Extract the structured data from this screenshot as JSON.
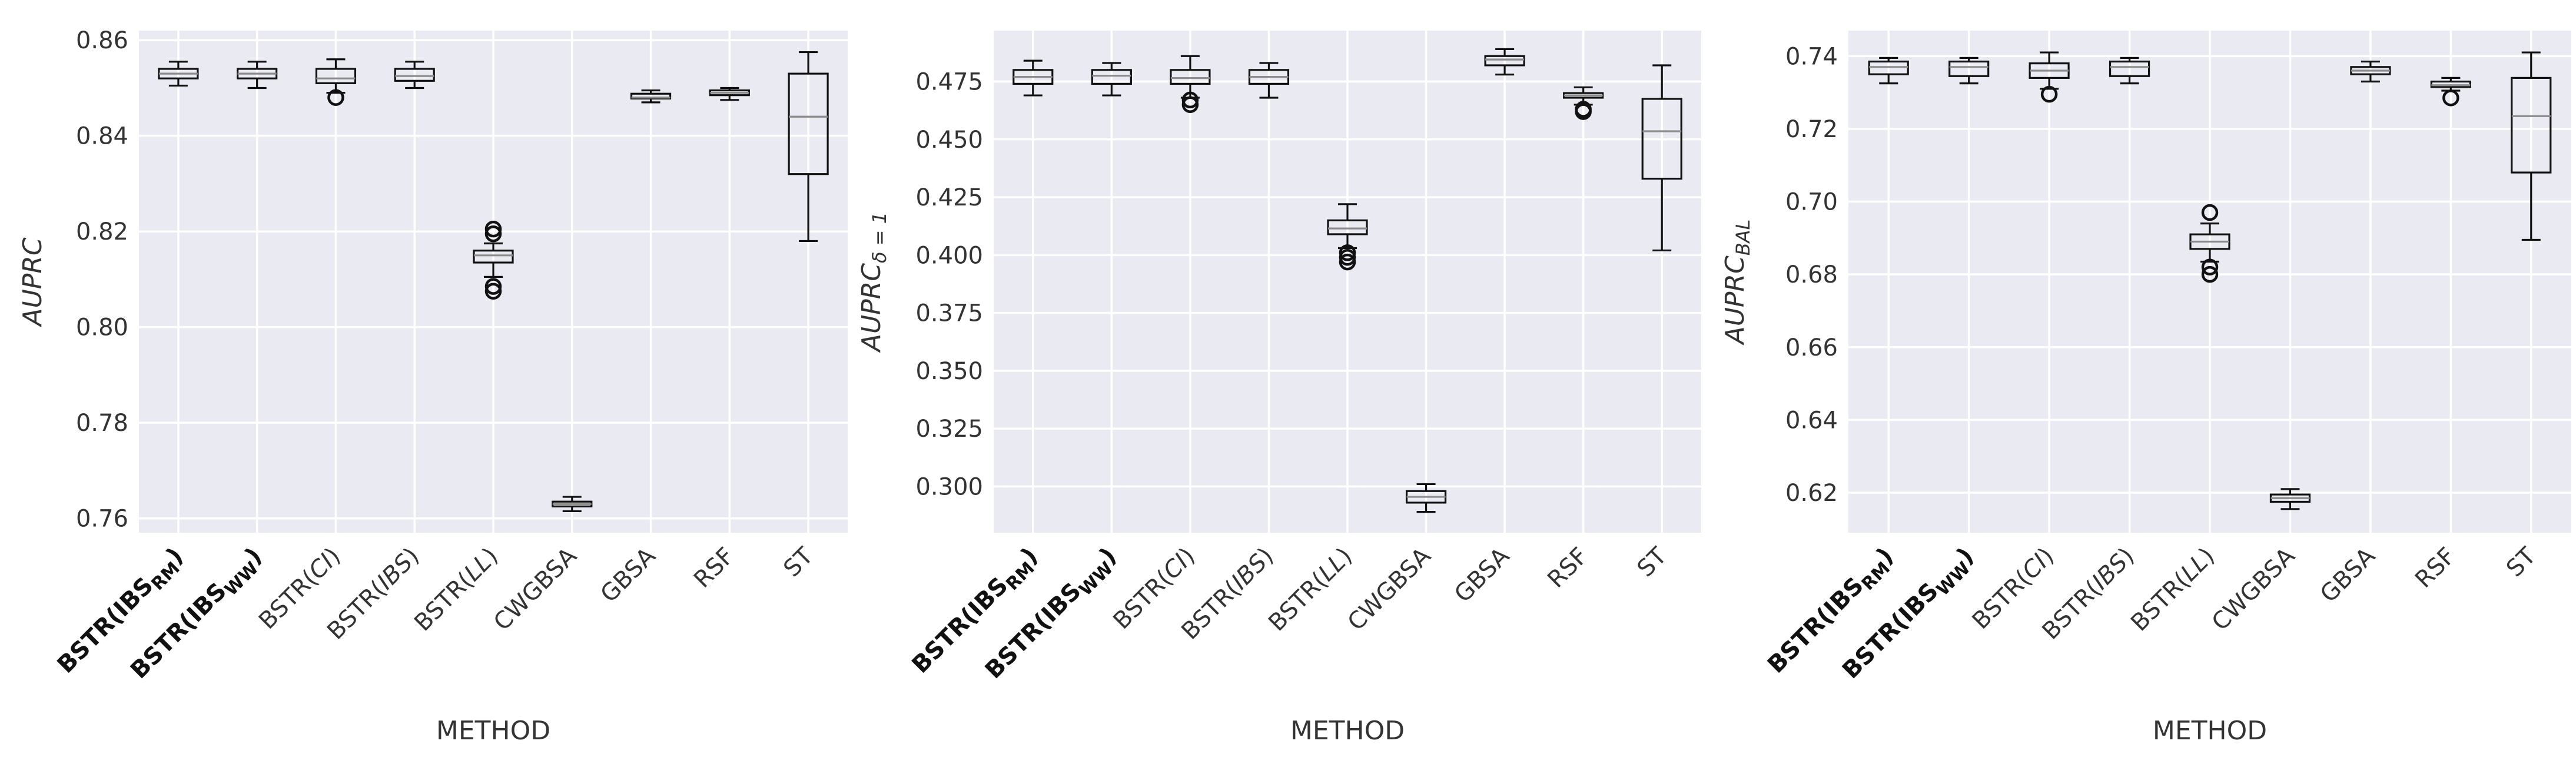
{
  "chart_data": [
    {
      "type": "box",
      "title": "",
      "xlabel": "METHOD",
      "ylabel": "AUPRC",
      "ylim": [
        0.757,
        0.862
      ],
      "yticks": [
        0.76,
        0.78,
        0.8,
        0.82,
        0.84,
        0.86
      ],
      "ytick_labels": [
        "0.76",
        "0.78",
        "0.80",
        "0.82",
        "0.84",
        "0.86"
      ],
      "categories": [
        "BSTR(IBS_RM)",
        "BSTR(IBS_WW)",
        "BSTR(CI)",
        "BSTR(IBS)",
        "BSTR(LL)",
        "CWGBSA",
        "GBSA",
        "RSF",
        "ST"
      ],
      "boxes": [
        {
          "whislo": 0.8505,
          "q1": 0.852,
          "med": 0.853,
          "q3": 0.854,
          "whishi": 0.8555,
          "fliers": []
        },
        {
          "whislo": 0.85,
          "q1": 0.852,
          "med": 0.853,
          "q3": 0.854,
          "whishi": 0.8555,
          "fliers": []
        },
        {
          "whislo": 0.849,
          "q1": 0.851,
          "med": 0.852,
          "q3": 0.854,
          "whishi": 0.856,
          "fliers": [
            0.848
          ]
        },
        {
          "whislo": 0.85,
          "q1": 0.8515,
          "med": 0.8525,
          "q3": 0.854,
          "whishi": 0.8555,
          "fliers": []
        },
        {
          "whislo": 0.8105,
          "q1": 0.8135,
          "med": 0.815,
          "q3": 0.816,
          "whishi": 0.8175,
          "fliers": [
            0.8075,
            0.8085,
            0.8195,
            0.8205
          ]
        },
        {
          "whislo": 0.7615,
          "q1": 0.7625,
          "med": 0.763,
          "q3": 0.7635,
          "whishi": 0.7645,
          "fliers": []
        },
        {
          "whislo": 0.847,
          "q1": 0.8478,
          "med": 0.848,
          "q3": 0.8488,
          "whishi": 0.8495,
          "fliers": []
        },
        {
          "whislo": 0.8475,
          "q1": 0.8485,
          "med": 0.849,
          "q3": 0.8495,
          "whishi": 0.85,
          "fliers": []
        },
        {
          "whislo": 0.818,
          "q1": 0.832,
          "med": 0.844,
          "q3": 0.853,
          "whishi": 0.8575,
          "fliers": []
        }
      ]
    },
    {
      "type": "box",
      "title": "",
      "xlabel": "METHOD",
      "ylabel": "AUPRC",
      "ylabel_sub": "δ = 1",
      "ylim": [
        0.28,
        0.497
      ],
      "yticks": [
        0.3,
        0.325,
        0.35,
        0.375,
        0.4,
        0.425,
        0.45,
        0.475
      ],
      "ytick_labels": [
        "0.300",
        "0.325",
        "0.350",
        "0.375",
        "0.400",
        "0.425",
        "0.450",
        "0.475"
      ],
      "categories": [
        "BSTR(IBS_RM)",
        "BSTR(IBS_WW)",
        "BSTR(CI)",
        "BSTR(IBS)",
        "BSTR(LL)",
        "CWGBSA",
        "GBSA",
        "RSF",
        "ST"
      ],
      "boxes": [
        {
          "whislo": 0.469,
          "q1": 0.474,
          "med": 0.477,
          "q3": 0.48,
          "whishi": 0.484,
          "fliers": []
        },
        {
          "whislo": 0.469,
          "q1": 0.474,
          "med": 0.4775,
          "q3": 0.48,
          "whishi": 0.483,
          "fliers": []
        },
        {
          "whislo": 0.468,
          "q1": 0.474,
          "med": 0.4765,
          "q3": 0.48,
          "whishi": 0.486,
          "fliers": [
            0.465,
            0.467
          ]
        },
        {
          "whislo": 0.468,
          "q1": 0.474,
          "med": 0.477,
          "q3": 0.48,
          "whishi": 0.483,
          "fliers": []
        },
        {
          "whislo": 0.403,
          "q1": 0.409,
          "med": 0.4115,
          "q3": 0.415,
          "whishi": 0.422,
          "fliers": [
            0.397,
            0.399,
            0.401
          ]
        },
        {
          "whislo": 0.289,
          "q1": 0.293,
          "med": 0.2955,
          "q3": 0.298,
          "whishi": 0.301,
          "fliers": []
        },
        {
          "whislo": 0.478,
          "q1": 0.482,
          "med": 0.4845,
          "q3": 0.486,
          "whishi": 0.489,
          "fliers": []
        },
        {
          "whislo": 0.465,
          "q1": 0.468,
          "med": 0.469,
          "q3": 0.47,
          "whishi": 0.4725,
          "fliers": [
            0.462,
            0.463
          ]
        },
        {
          "whislo": 0.402,
          "q1": 0.433,
          "med": 0.4535,
          "q3": 0.4675,
          "whishi": 0.482,
          "fliers": []
        }
      ]
    },
    {
      "type": "box",
      "title": "",
      "xlabel": "METHOD",
      "ylabel": "AUPRC",
      "ylabel_sub": "BAL",
      "ylim": [
        0.609,
        0.747
      ],
      "yticks": [
        0.62,
        0.64,
        0.66,
        0.68,
        0.7,
        0.72,
        0.74
      ],
      "ytick_labels": [
        "0.62",
        "0.64",
        "0.66",
        "0.68",
        "0.70",
        "0.72",
        "0.74"
      ],
      "categories": [
        "BSTR(IBS_RM)",
        "BSTR(IBS_WW)",
        "BSTR(CI)",
        "BSTR(IBS)",
        "BSTR(LL)",
        "CWGBSA",
        "GBSA",
        "RSF",
        "ST"
      ],
      "boxes": [
        {
          "whislo": 0.7325,
          "q1": 0.735,
          "med": 0.737,
          "q3": 0.7385,
          "whishi": 0.7395,
          "fliers": []
        },
        {
          "whislo": 0.7325,
          "q1": 0.7345,
          "med": 0.737,
          "q3": 0.7385,
          "whishi": 0.7395,
          "fliers": []
        },
        {
          "whislo": 0.731,
          "q1": 0.734,
          "med": 0.736,
          "q3": 0.738,
          "whishi": 0.741,
          "fliers": [
            0.7295
          ]
        },
        {
          "whislo": 0.7325,
          "q1": 0.7345,
          "med": 0.737,
          "q3": 0.7385,
          "whishi": 0.7395,
          "fliers": []
        },
        {
          "whislo": 0.6835,
          "q1": 0.687,
          "med": 0.689,
          "q3": 0.691,
          "whishi": 0.694,
          "fliers": [
            0.68,
            0.682,
            0.697
          ]
        },
        {
          "whislo": 0.6155,
          "q1": 0.6175,
          "med": 0.6185,
          "q3": 0.6195,
          "whishi": 0.621,
          "fliers": []
        },
        {
          "whislo": 0.733,
          "q1": 0.735,
          "med": 0.736,
          "q3": 0.737,
          "whishi": 0.7385,
          "fliers": []
        },
        {
          "whislo": 0.7305,
          "q1": 0.7315,
          "med": 0.732,
          "q3": 0.733,
          "whishi": 0.734,
          "fliers": [
            0.7285
          ]
        },
        {
          "whislo": 0.6895,
          "q1": 0.708,
          "med": 0.7235,
          "q3": 0.734,
          "whishi": 0.741,
          "fliers": []
        }
      ]
    }
  ],
  "labels": {
    "categories": [
      {
        "base": "BSTR(",
        "inner": "IBS",
        "sub": "RM",
        "end": ")",
        "style": "bold"
      },
      {
        "base": "BSTR(",
        "inner": "IBS",
        "sub": "WW",
        "end": ")",
        "style": "bold"
      },
      {
        "base": "BSTR(",
        "inner": "CI",
        "sub": "",
        "end": ")",
        "style": "italic-inner"
      },
      {
        "base": "BSTR(",
        "inner": "IBS",
        "sub": "",
        "end": ")",
        "style": "italic-inner"
      },
      {
        "base": "BSTR(",
        "inner": "LL",
        "sub": "",
        "end": ")",
        "style": "italic-inner"
      },
      {
        "base": "CWGBSA",
        "inner": "",
        "sub": "",
        "end": "",
        "style": "plain"
      },
      {
        "base": "GBSA",
        "inner": "",
        "sub": "",
        "end": "",
        "style": "plain"
      },
      {
        "base": "RSF",
        "inner": "",
        "sub": "",
        "end": "",
        "style": "plain"
      },
      {
        "base": "ST",
        "inner": "",
        "sub": "",
        "end": "",
        "style": "plain"
      }
    ]
  },
  "colors": {
    "plot_background": "#eaeaf2",
    "grid": "#ffffff",
    "box": "#111111",
    "median": "#8c8c8c",
    "text": "#333333"
  }
}
